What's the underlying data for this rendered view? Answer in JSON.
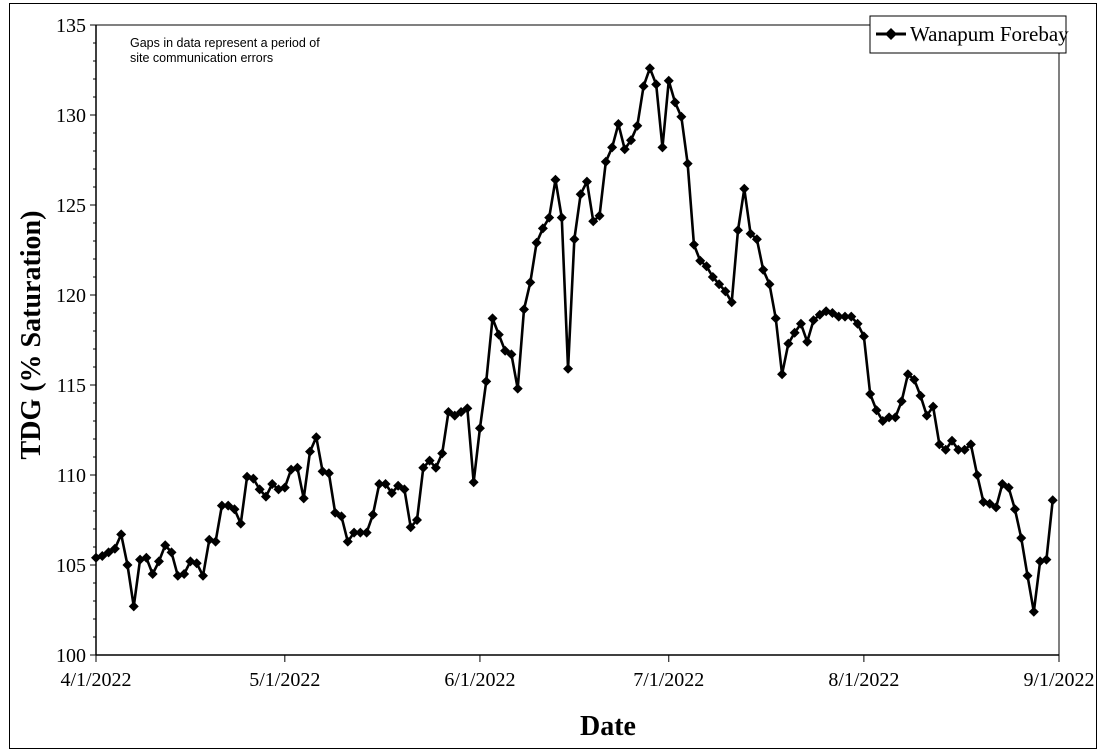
{
  "chart_data": {
    "type": "line",
    "title": "",
    "xlabel": "Date",
    "ylabel": "TDG (% Saturation)",
    "ylim": [
      100,
      135
    ],
    "yticks": [
      100,
      105,
      110,
      115,
      120,
      125,
      130,
      135
    ],
    "xlim": [
      "2022-04-01",
      "2022-09-01"
    ],
    "xticks": [
      {
        "date": "2022-04-01",
        "label": "4/1/2022"
      },
      {
        "date": "2022-05-01",
        "label": "5/1/2022"
      },
      {
        "date": "2022-06-01",
        "label": "6/1/2022"
      },
      {
        "date": "2022-07-01",
        "label": "7/1/2022"
      },
      {
        "date": "2022-08-01",
        "label": "8/1/2022"
      },
      {
        "date": "2022-09-01",
        "label": "9/1/2022"
      }
    ],
    "grid": false,
    "legend_position": "top-right",
    "annotation": [
      "Gaps in data represent a period of",
      "site communication errors"
    ],
    "color": "#000000",
    "marker": "diamond",
    "series": [
      {
        "name": "Wanapum Forebay",
        "points": [
          [
            "2022-04-01",
            105.4
          ],
          [
            "2022-04-02",
            105.5
          ],
          [
            "2022-04-03",
            105.7
          ],
          [
            "2022-04-04",
            105.9
          ],
          [
            "2022-04-05",
            106.7
          ],
          [
            "2022-04-06",
            105.0
          ],
          [
            "2022-04-07",
            102.7
          ],
          [
            "2022-04-08",
            105.3
          ],
          [
            "2022-04-09",
            105.4
          ],
          [
            "2022-04-10",
            104.5
          ],
          [
            "2022-04-11",
            105.2
          ],
          [
            "2022-04-12",
            106.1
          ],
          [
            "2022-04-13",
            105.7
          ],
          [
            "2022-04-14",
            104.4
          ],
          [
            "2022-04-15",
            104.5
          ],
          [
            "2022-04-16",
            105.2
          ],
          [
            "2022-04-17",
            105.1
          ],
          [
            "2022-04-18",
            104.4
          ],
          [
            "2022-04-19",
            106.4
          ],
          [
            "2022-04-20",
            106.3
          ],
          [
            "2022-04-21",
            108.3
          ],
          [
            "2022-04-22",
            108.3
          ],
          [
            "2022-04-23",
            108.1
          ],
          [
            "2022-04-24",
            107.3
          ],
          [
            "2022-04-25",
            109.9
          ],
          [
            "2022-04-26",
            109.8
          ],
          [
            "2022-04-27",
            109.2
          ],
          [
            "2022-04-28",
            108.8
          ],
          [
            "2022-04-29",
            109.5
          ],
          [
            "2022-04-30",
            109.2
          ],
          [
            "2022-05-01",
            109.3
          ],
          [
            "2022-05-02",
            110.3
          ],
          [
            "2022-05-03",
            110.4
          ],
          [
            "2022-05-04",
            108.7
          ],
          [
            "2022-05-05",
            111.3
          ],
          [
            "2022-05-06",
            112.1
          ],
          [
            "2022-05-07",
            110.2
          ],
          [
            "2022-05-08",
            110.1
          ],
          [
            "2022-05-09",
            107.9
          ],
          [
            "2022-05-10",
            107.7
          ],
          [
            "2022-05-11",
            106.3
          ],
          [
            "2022-05-12",
            106.8
          ],
          [
            "2022-05-13",
            106.8
          ],
          [
            "2022-05-14",
            106.8
          ],
          [
            "2022-05-15",
            107.8
          ],
          [
            "2022-05-16",
            109.5
          ],
          [
            "2022-05-17",
            109.5
          ],
          [
            "2022-05-18",
            109.0
          ],
          [
            "2022-05-19",
            109.4
          ],
          [
            "2022-05-20",
            109.2
          ],
          [
            "2022-05-21",
            107.1
          ],
          [
            "2022-05-22",
            107.5
          ],
          [
            "2022-05-23",
            110.4
          ],
          [
            "2022-05-24",
            110.8
          ],
          [
            "2022-05-25",
            110.4
          ],
          [
            "2022-05-26",
            111.2
          ],
          [
            "2022-05-27",
            113.5
          ],
          [
            "2022-05-28",
            113.3
          ],
          [
            "2022-05-29",
            113.5
          ],
          [
            "2022-05-30",
            113.7
          ],
          [
            "2022-05-31",
            109.6
          ],
          [
            "2022-06-01",
            112.6
          ],
          [
            "2022-06-02",
            115.2
          ],
          [
            "2022-06-03",
            118.7
          ],
          [
            "2022-06-04",
            117.8
          ],
          [
            "2022-06-05",
            116.9
          ],
          [
            "2022-06-06",
            116.7
          ],
          [
            "2022-06-07",
            114.8
          ],
          [
            "2022-06-08",
            119.2
          ],
          [
            "2022-06-09",
            120.7
          ],
          [
            "2022-06-10",
            122.9
          ],
          [
            "2022-06-11",
            123.7
          ],
          [
            "2022-06-12",
            124.3
          ],
          [
            "2022-06-13",
            126.4
          ],
          [
            "2022-06-14",
            124.3
          ],
          [
            "2022-06-15",
            115.9
          ],
          [
            "2022-06-16",
            123.1
          ],
          [
            "2022-06-17",
            125.6
          ],
          [
            "2022-06-18",
            126.3
          ],
          [
            "2022-06-19",
            124.1
          ],
          [
            "2022-06-20",
            124.4
          ],
          [
            "2022-06-21",
            127.4
          ],
          [
            "2022-06-22",
            128.2
          ],
          [
            "2022-06-23",
            129.5
          ],
          [
            "2022-06-24",
            128.1
          ],
          [
            "2022-06-25",
            128.6
          ],
          [
            "2022-06-26",
            129.4
          ],
          [
            "2022-06-27",
            131.6
          ],
          [
            "2022-06-28",
            132.6
          ],
          [
            "2022-06-29",
            131.7
          ],
          [
            "2022-06-30",
            128.2
          ],
          [
            "2022-07-01",
            131.9
          ],
          [
            "2022-07-02",
            130.7
          ],
          [
            "2022-07-03",
            129.9
          ],
          [
            "2022-07-04",
            127.3
          ],
          [
            "2022-07-05",
            122.8
          ],
          [
            "2022-07-06",
            121.9
          ],
          [
            "2022-07-07",
            121.6
          ],
          [
            "2022-07-08",
            121.0
          ],
          [
            "2022-07-09",
            120.6
          ],
          [
            "2022-07-10",
            120.2
          ],
          [
            "2022-07-11",
            119.6
          ],
          [
            "2022-07-12",
            123.6
          ],
          [
            "2022-07-13",
            125.9
          ],
          [
            "2022-07-14",
            123.4
          ],
          [
            "2022-07-15",
            123.1
          ],
          [
            "2022-07-16",
            121.4
          ],
          [
            "2022-07-17",
            120.6
          ],
          [
            "2022-07-18",
            118.7
          ],
          [
            "2022-07-19",
            115.6
          ],
          [
            "2022-07-20",
            117.3
          ],
          [
            "2022-07-21",
            117.9
          ],
          [
            "2022-07-22",
            118.4
          ],
          [
            "2022-07-23",
            117.4
          ],
          [
            "2022-07-24",
            118.6
          ],
          [
            "2022-07-25",
            118.9
          ],
          [
            "2022-07-26",
            119.1
          ],
          [
            "2022-07-27",
            119.0
          ],
          [
            "2022-07-28",
            118.8
          ],
          [
            "2022-07-29",
            118.8
          ],
          [
            "2022-07-30",
            118.8
          ],
          [
            "2022-07-31",
            118.4
          ],
          [
            "2022-08-01",
            117.7
          ],
          [
            "2022-08-02",
            114.5
          ],
          [
            "2022-08-03",
            113.6
          ],
          [
            "2022-08-04",
            113.0
          ],
          [
            "2022-08-05",
            113.2
          ],
          [
            "2022-08-06",
            113.2
          ],
          [
            "2022-08-07",
            114.1
          ],
          [
            "2022-08-08",
            115.6
          ],
          [
            "2022-08-09",
            115.3
          ],
          [
            "2022-08-10",
            114.4
          ],
          [
            "2022-08-11",
            113.3
          ],
          [
            "2022-08-12",
            113.8
          ],
          [
            "2022-08-13",
            111.7
          ],
          [
            "2022-08-14",
            111.4
          ],
          [
            "2022-08-15",
            111.9
          ],
          [
            "2022-08-16",
            111.4
          ],
          [
            "2022-08-17",
            111.4
          ],
          [
            "2022-08-18",
            111.7
          ],
          [
            "2022-08-19",
            110.0
          ],
          [
            "2022-08-20",
            108.5
          ],
          [
            "2022-08-21",
            108.4
          ],
          [
            "2022-08-22",
            108.2
          ],
          [
            "2022-08-23",
            109.5
          ],
          [
            "2022-08-24",
            109.3
          ],
          [
            "2022-08-25",
            108.1
          ],
          [
            "2022-08-26",
            106.5
          ],
          [
            "2022-08-27",
            104.4
          ],
          [
            "2022-08-28",
            102.4
          ],
          [
            "2022-08-29",
            105.2
          ],
          [
            "2022-08-30",
            105.3
          ],
          [
            "2022-08-31",
            108.6
          ]
        ]
      }
    ]
  }
}
